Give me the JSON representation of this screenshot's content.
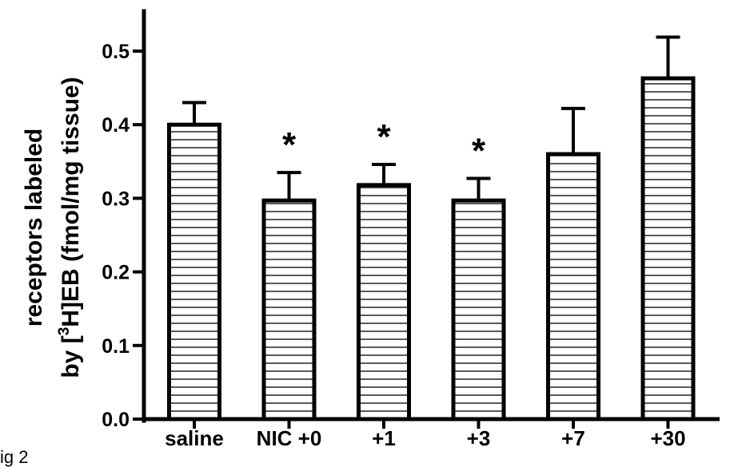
{
  "caption": "ig 2",
  "chart_data": {
    "type": "bar",
    "title": "",
    "ylabel_line1": "receptors labeled",
    "ylabel_line2_prefix": "by [",
    "ylabel_line2_sup": "3",
    "ylabel_line2_suffix": "H]EB (fmol/mg tissue)",
    "xlabel": "",
    "categories": [
      "saline",
      "NIC +0",
      "+1",
      "+3",
      "+7",
      "+30"
    ],
    "values": [
      0.4,
      0.297,
      0.318,
      0.297,
      0.36,
      0.463
    ],
    "errors": [
      0.03,
      0.038,
      0.028,
      0.03,
      0.062,
      0.056
    ],
    "significance": [
      "",
      "*",
      "*",
      "*",
      "",
      ""
    ],
    "ylim": [
      0,
      0.5
    ],
    "yticks": [
      "0.0",
      "0.1",
      "0.2",
      "0.3",
      "0.4",
      "0.5"
    ],
    "bar_fill": "horizontal-hatch",
    "colors": {
      "bar_edge": "#000000",
      "hatch": "#000000",
      "background": "#ffffff"
    },
    "grid": false,
    "legend": "none"
  }
}
